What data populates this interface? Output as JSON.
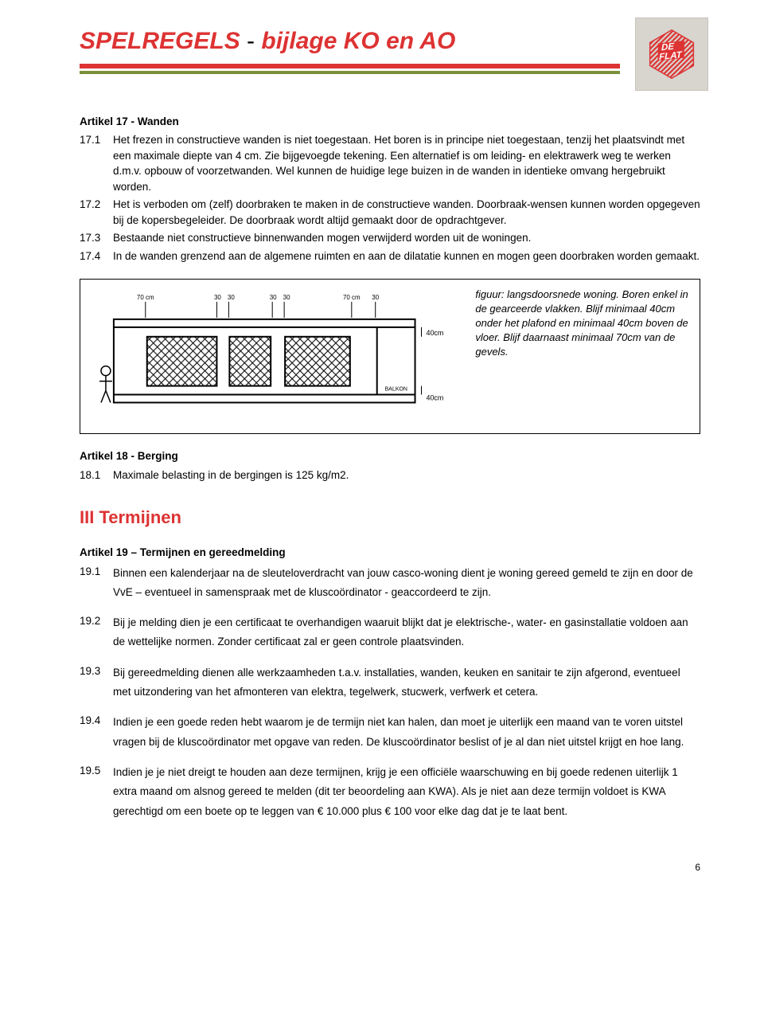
{
  "header": {
    "title_main": "SPELREGELS",
    "title_dash": " - ",
    "title_sub": "bijlage KO en AO",
    "colors": {
      "red": "#d33",
      "green": "#7a8f3a",
      "logo_bg": "#d8d4ce"
    },
    "logo_text": [
      "DE",
      "FLAT"
    ]
  },
  "article17": {
    "heading": "Artikel 17 - Wanden",
    "clauses": [
      {
        "num": "17.1",
        "txt": "Het frezen in constructieve wanden is niet toegestaan. Het boren is in principe niet toegestaan, tenzij het plaatsvindt met een maximale diepte van 4 cm. Zie bijgevoegde tekening. Een alternatief is om leiding- en elektrawerk weg te werken d.m.v. opbouw of voorzetwanden. Wel kunnen de huidige lege buizen in de wanden in identieke omvang hergebruikt worden."
      },
      {
        "num": "17.2",
        "txt": "Het is verboden om (zelf) doorbraken te maken in de constructieve wanden. Doorbraak-wensen kunnen worden opgegeven bij de kopersbegeleider. De doorbraak wordt altijd gemaakt door de opdrachtgever."
      },
      {
        "num": "17.3",
        "txt": "Bestaande niet constructieve binnenwanden mogen verwijderd worden uit de woningen."
      },
      {
        "num": "17.4",
        "txt": "In de wanden grenzend aan de algemene ruimten en aan de dilatatie kunnen en mogen geen doorbraken worden gemaakt."
      }
    ]
  },
  "figure": {
    "caption": "figuur: langsdoorsnede woning. Boren enkel in de gearceerde vlakken. Blijf minimaal 40cm onder het plafond en minimaal 40cm boven de vloer. Blijf daarnaast minimaal 70cm van de gevels.",
    "labels": {
      "top_dims": [
        "70 cm",
        "30 cm",
        "30 cm",
        "70 cm",
        "30 cm"
      ],
      "right_top": "40cm",
      "right_bottom": "40cm",
      "balkon": "BALKON"
    }
  },
  "article18": {
    "heading": "Artikel 18 - Berging",
    "clauses": [
      {
        "num": "18.1",
        "txt": "Maximale belasting in de bergingen is 125 kg/m2."
      }
    ]
  },
  "section3": {
    "heading": "III Termijnen"
  },
  "article19": {
    "heading": "Artikel 19 – Termijnen en gereedmelding",
    "clauses": [
      {
        "num": "19.1",
        "txt": "Binnen een kalenderjaar na de sleuteloverdracht van jouw casco-woning dient je woning gereed gemeld te zijn en door de VvE – eventueel in samenspraak met de kluscoördinator - geaccordeerd te zijn."
      },
      {
        "num": "19.2",
        "txt": "Bij je melding dien je een certificaat te overhandigen waaruit blijkt dat je elektrische-, water- en gasinstallatie voldoen aan de wettelijke normen. Zonder certificaat zal er geen controle plaatsvinden."
      },
      {
        "num": "19.3",
        "txt": "Bij gereedmelding dienen alle werkzaamheden t.a.v. installaties, wanden, keuken en sanitair te zijn afgerond, eventueel met uitzondering van het afmonteren van elektra, tegelwerk, stucwerk, verfwerk et cetera."
      },
      {
        "num": "19.4",
        "txt": "Indien je een goede reden hebt waarom je de termijn niet kan halen, dan moet je uiterlijk een maand van te voren uitstel vragen bij de kluscoördinator met opgave van reden. De kluscoördinator beslist of je al dan niet uitstel krijgt en hoe lang."
      },
      {
        "num": "19.5",
        "txt": "Indien je je niet dreigt te houden aan deze termijnen, krijg je een officiële waarschuwing en bij goede redenen uiterlijk 1 extra maand om alsnog gereed te melden (dit ter beoordeling aan KWA). Als je niet aan deze termijn voldoet is KWA gerechtigd om een boete op te leggen van € 10.000 plus € 100 voor elke dag dat je te laat bent."
      }
    ]
  },
  "page_number": "6"
}
